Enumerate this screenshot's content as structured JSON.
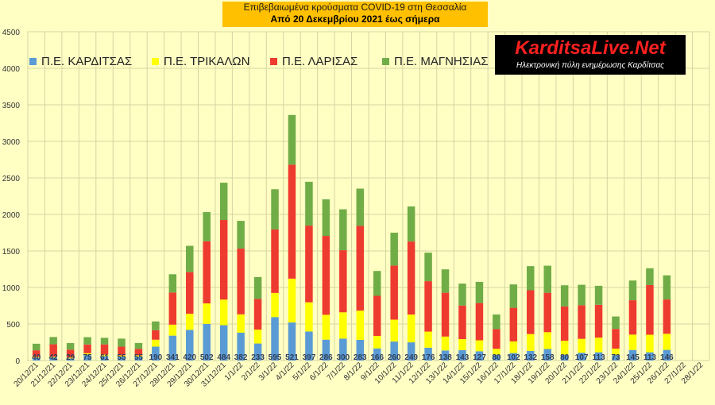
{
  "title": {
    "line1": "Επιβεβαιωμένα κρούσματα COVID-19 στη Θεσσαλία",
    "line2": "Από 20 Δεκεμβρίου 2021 έως σήμερα"
  },
  "logo": {
    "main": "KarditsaLive.Net",
    "sub": "Ηλεκτρονική πύλη ενημέρωσης Καρδίτσας"
  },
  "colors": {
    "background": "#ffffc4",
    "grid": "#d6d4a2",
    "karditsa": "#5b9bd5",
    "trikala": "#ffff00",
    "larisa": "#ee3b2f",
    "magnisia": "#70ad47"
  },
  "chart_data": {
    "type": "bar",
    "stacked": true,
    "grid": true,
    "legend_position": "top-left",
    "ylim": [
      0,
      4500
    ],
    "yticks": [
      0,
      500,
      1000,
      1500,
      2000,
      2500,
      3000,
      3500,
      4000,
      4500
    ],
    "categories": [
      "20/12/21",
      "21/12/21",
      "22/12/21",
      "23/12/21",
      "24/12/21",
      "25/12/21",
      "26/12/21",
      "27/12/21",
      "28/12/21",
      "29/12/21",
      "30/12/21",
      "31/12/21",
      "1/1/22",
      "2/1/22",
      "3/1/22",
      "4/1/22",
      "5/1/22",
      "6/1/22",
      "7/1/22",
      "8/1/22",
      "9/1/22",
      "10/1/22",
      "11/1/22",
      "12/1/22",
      "13/1/22",
      "14/1/22",
      "15/1/22",
      "16/1/22",
      "17/1/22",
      "18/1/22",
      "19/1/22",
      "20/1/22",
      "21/1/22",
      "22/1/22",
      "23/1/22",
      "24/1/22",
      "25/1/22",
      "26/1/22",
      "27/1/22",
      "28/1/22"
    ],
    "series": [
      {
        "name": "Π.Ε. ΚΑΡΔΙΤΣΑΣ",
        "color": "#5b9bd5",
        "values": [
          40,
          42,
          29,
          75,
          61,
          55,
          55,
          190,
          341,
          420,
          502,
          484,
          382,
          233,
          595,
          521,
          397,
          286,
          300,
          283,
          166,
          260,
          249,
          176,
          138,
          143,
          127,
          80,
          102,
          132,
          158,
          80,
          107,
          113,
          73,
          145,
          113,
          146,
          0,
          0
        ]
      },
      {
        "name": "Π.Ε. ΤΡΙΚΑΛΩΝ",
        "color": "#ffff00",
        "values": [
          10,
          10,
          10,
          25,
          20,
          15,
          15,
          95,
          150,
          220,
          280,
          350,
          250,
          190,
          330,
          600,
          400,
          340,
          360,
          400,
          170,
          300,
          380,
          220,
          190,
          150,
          150,
          80,
          160,
          230,
          230,
          190,
          190,
          200,
          90,
          210,
          240,
          220,
          0,
          0
        ]
      },
      {
        "name": "Π.Ε. ΛΑΡΙΣΑΣ",
        "color": "#ee3b2f",
        "values": [
          90,
          170,
          110,
          120,
          140,
          120,
          90,
          130,
          440,
          570,
          850,
          1090,
          900,
          420,
          870,
          1560,
          1050,
          1080,
          850,
          1160,
          550,
          740,
          1000,
          690,
          600,
          460,
          510,
          270,
          460,
          600,
          540,
          470,
          460,
          450,
          270,
          470,
          680,
          470,
          0,
          0
        ]
      },
      {
        "name": "Π.Ε. ΜΑΓΝΗΣΙΑΣ",
        "color": "#70ad47",
        "values": [
          90,
          100,
          90,
          100,
          90,
          110,
          80,
          120,
          250,
          360,
          400,
          510,
          380,
          300,
          550,
          680,
          600,
          500,
          560,
          510,
          340,
          450,
          480,
          390,
          320,
          300,
          290,
          200,
          320,
          330,
          370,
          290,
          280,
          260,
          170,
          270,
          230,
          330,
          0,
          0
        ]
      }
    ]
  }
}
